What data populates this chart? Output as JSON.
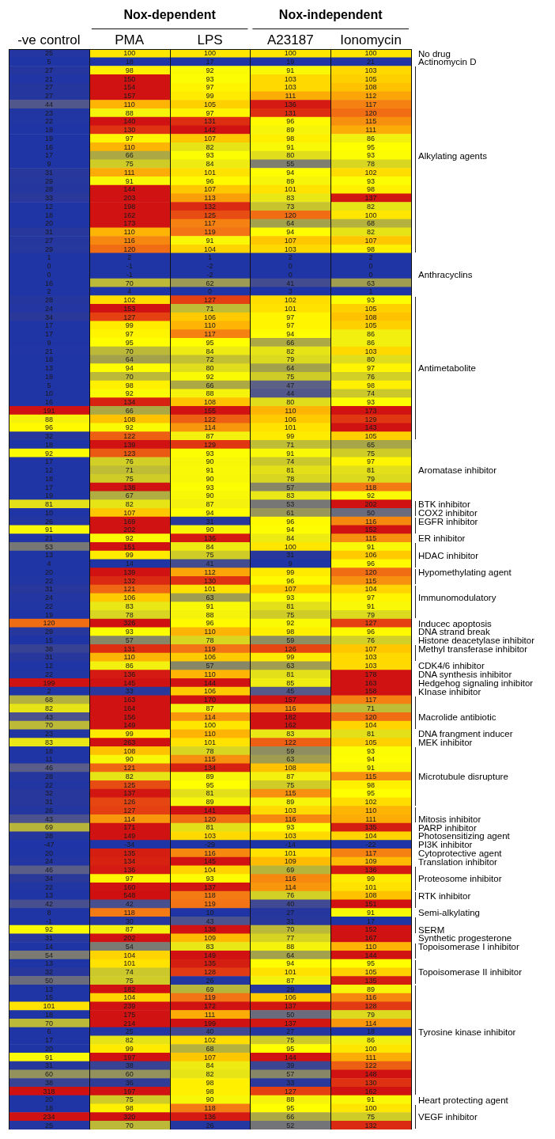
{
  "chart_data": {
    "type": "heatmap",
    "data_labels": true,
    "annotations": [
      "Nox-dependent",
      "Nox-independent"
    ],
    "categories": [
      "-ve control",
      "PMA",
      "LPS",
      "A23187",
      "Ionomycin"
    ],
    "y_categories": [
      null,
      null,
      null,
      null,
      null,
      null,
      null,
      null,
      null,
      null,
      null,
      null,
      null,
      null,
      null,
      null,
      null,
      null,
      null,
      null,
      null,
      null,
      null,
      null,
      null,
      null,
      null,
      null,
      null,
      null,
      null,
      null,
      null,
      null,
      null,
      null,
      null,
      null,
      null,
      null,
      null,
      null,
      null,
      null,
      null,
      null,
      null,
      null,
      null,
      null,
      null,
      null,
      null,
      null,
      null,
      null,
      null,
      null,
      null,
      null,
      null,
      null,
      null,
      null,
      null,
      null,
      null,
      null,
      null,
      null,
      null,
      null,
      null,
      null,
      null,
      null,
      null,
      null,
      null,
      null,
      null,
      null,
      null,
      null,
      null,
      null,
      null,
      null,
      null,
      null,
      null,
      null,
      null,
      null,
      null,
      null,
      null,
      null,
      null,
      null,
      null,
      null,
      null,
      null,
      null,
      null,
      null,
      null,
      null,
      null,
      null,
      null,
      null,
      null,
      null,
      null,
      null,
      null,
      null,
      null,
      null,
      null,
      null,
      null,
      null,
      null,
      null
    ],
    "y2_categories": [
      "No drug",
      "Actinomycin D",
      null,
      null,
      null,
      null,
      null,
      null,
      null,
      null,
      null,
      null,
      "Alkylating agents",
      null,
      null,
      null,
      null,
      null,
      null,
      null,
      null,
      null,
      null,
      null,
      null,
      null,
      "Anthracyclins",
      null,
      null,
      null,
      null,
      null,
      null,
      null,
      null,
      null,
      null,
      "Antimetabolite",
      null,
      null,
      null,
      null,
      null,
      null,
      null,
      null,
      null,
      null,
      null,
      "Aromatase inhibitor",
      null,
      null,
      null,
      "BTK inhibitor",
      "COX2 inhibitor",
      "EGFR inhibitor",
      null,
      "ER inhibitor",
      null,
      "HDAC inhibitor",
      null,
      "Hypomethylating agent",
      null,
      null,
      "Immunomodulatory",
      null,
      null,
      "Inducec apoptosis",
      "DNA strand break",
      "Histone deacetylase inhibitor",
      "Methyl transferase inhibitor",
      null,
      "CDK4/6 inhibitor",
      "DNA synthesis inhibitor",
      "Hedgehog signaling inhibitor",
      "KInase inhibitor",
      null,
      null,
      "Macrolide antibiotic",
      null,
      "DNA frangment inducer",
      "MEK inhibitor",
      null,
      null,
      null,
      "Microtubule disrupture",
      null,
      null,
      null,
      null,
      "Mitosis inhibitor",
      "PARP inhibitor",
      "Photosensitizing agent",
      "PI3K inhibitor",
      "Cytoprotective agent",
      "Translation inhibitor",
      null,
      "Proteosome inhibitor",
      null,
      "RTK inhibitor",
      null,
      "Semi-alkylating",
      null,
      "SERM",
      "Synthetic progesterone",
      "Topoisomerase I inhibitor",
      null,
      null,
      "Topoisomerase II inhibitor",
      null,
      null,
      null,
      null,
      null,
      null,
      "Tyrosine kinase inhibitor",
      null,
      null,
      null,
      null,
      null,
      null,
      null,
      "Heart protecting agent",
      null,
      "VEGF inhibitor",
      null
    ],
    "cells": [
      [
        25,
        100,
        100,
        100,
        100
      ],
      [
        5,
        18,
        17,
        19,
        21
      ],
      [
        27,
        98,
        92,
        91,
        103
      ],
      [
        21,
        150,
        93,
        103,
        105
      ],
      [
        27,
        154,
        97,
        103,
        108
      ],
      [
        27,
        157,
        99,
        111,
        112
      ],
      [
        44,
        110,
        105,
        136,
        117
      ],
      [
        23,
        88,
        97,
        131,
        120
      ],
      [
        22,
        140,
        131,
        96,
        115
      ],
      [
        18,
        130,
        142,
        89,
        111
      ],
      [
        19,
        97,
        107,
        98,
        86
      ],
      [
        16,
        110,
        82,
        91,
        95
      ],
      [
        17,
        66,
        93,
        80,
        93
      ],
      [
        9,
        75,
        84,
        55,
        78
      ],
      [
        31,
        111,
        101,
        94,
        102
      ],
      [
        29,
        91,
        96,
        89,
        93
      ],
      [
        28,
        144,
        107,
        101,
        98
      ],
      [
        33,
        203,
        113,
        83,
        137
      ],
      [
        12,
        198,
        132,
        73,
        82
      ],
      [
        18,
        162,
        125,
        120,
        100
      ],
      [
        20,
        173,
        117,
        64,
        68
      ],
      [
        31,
        110,
        119,
        94,
        82
      ],
      [
        27,
        116,
        91,
        107,
        107
      ],
      [
        29,
        120,
        104,
        103,
        98
      ],
      [
        1,
        2,
        1,
        2,
        2
      ],
      [
        0,
        -1,
        -2,
        0,
        0
      ],
      [
        0,
        -1,
        -2,
        0,
        0
      ],
      [
        16,
        70,
        62,
        41,
        63
      ],
      [
        2,
        4,
        0,
        3,
        1
      ],
      [
        28,
        102,
        127,
        102,
        93
      ],
      [
        24,
        153,
        71,
        101,
        105
      ],
      [
        34,
        127,
        106,
        97,
        108
      ],
      [
        17,
        99,
        110,
        97,
        105
      ],
      [
        17,
        97,
        117,
        94,
        86
      ],
      [
        9,
        95,
        95,
        66,
        86
      ],
      [
        21,
        70,
        84,
        82,
        103
      ],
      [
        18,
        64,
        72,
        79,
        80
      ],
      [
        13,
        94,
        80,
        64,
        97
      ],
      [
        18,
        70,
        92,
        75,
        76
      ],
      [
        5,
        98,
        66,
        47,
        98
      ],
      [
        10,
        92,
        88,
        44,
        74
      ],
      [
        16,
        134,
        108,
        80,
        93
      ],
      [
        191,
        66,
        155,
        110,
        173
      ],
      [
        88,
        108,
        122,
        106,
        129
      ],
      [
        96,
        92,
        114,
        101,
        143
      ],
      [
        32,
        122,
        87,
        99,
        105
      ],
      [
        18,
        139,
        129,
        71,
        65
      ],
      [
        92,
        123,
        93,
        91,
        75
      ],
      [
        17,
        76,
        90,
        74,
        97
      ],
      [
        12,
        71,
        91,
        81,
        81
      ],
      [
        18,
        75,
        90,
        78,
        79
      ],
      [
        17,
        138,
        93,
        57,
        118
      ],
      [
        19,
        67,
        90,
        83,
        92
      ],
      [
        81,
        82,
        87,
        53,
        202
      ],
      [
        10,
        107,
        94,
        61,
        50
      ],
      [
        26,
        169,
        31,
        96,
        116
      ],
      [
        91,
        202,
        90,
        94,
        152
      ],
      [
        21,
        92,
        136,
        84,
        115
      ],
      [
        53,
        151,
        84,
        100,
        91
      ],
      [
        13,
        99,
        75,
        31,
        106
      ],
      [
        4,
        14,
        41,
        9,
        96
      ],
      [
        20,
        139,
        112,
        99,
        120
      ],
      [
        22,
        132,
        130,
        96,
        115
      ],
      [
        31,
        121,
        101,
        107,
        104
      ],
      [
        24,
        106,
        63,
        93,
        97
      ],
      [
        22,
        83,
        91,
        81,
        91
      ],
      [
        19,
        78,
        88,
        75,
        79
      ],
      [
        120,
        326,
        96,
        92,
        127
      ],
      [
        29,
        93,
        110,
        98,
        96
      ],
      [
        15,
        57,
        78,
        59,
        76
      ],
      [
        38,
        131,
        119,
        126,
        107
      ],
      [
        31,
        110,
        106,
        99,
        103
      ],
      [
        12,
        86,
        57,
        63,
        103
      ],
      [
        22,
        136,
        110,
        81,
        178
      ],
      [
        199,
        145,
        144,
        85,
        163
      ],
      [
        2,
        33,
        106,
        45,
        158
      ],
      [
        68,
        163,
        170,
        157,
        117
      ],
      [
        82,
        164,
        87,
        116,
        71
      ],
      [
        43,
        156,
        114,
        182,
        120
      ],
      [
        70,
        149,
        100,
        162,
        104
      ],
      [
        23,
        99,
        110,
        83,
        81
      ],
      [
        83,
        263,
        101,
        122,
        105
      ],
      [
        18,
        108,
        78,
        59,
        93
      ],
      [
        11,
        90,
        115,
        63,
        94
      ],
      [
        46,
        121,
        134,
        108,
        91
      ],
      [
        28,
        82,
        89,
        87,
        115
      ],
      [
        22,
        125,
        95,
        75,
        98
      ],
      [
        32,
        137,
        81,
        115,
        95
      ],
      [
        31,
        126,
        89,
        89,
        102
      ],
      [
        26,
        127,
        141,
        103,
        110
      ],
      [
        43,
        114,
        120,
        116,
        111
      ],
      [
        69,
        171,
        81,
        93,
        135
      ],
      [
        28,
        149,
        103,
        103,
        104
      ],
      [
        -47,
        -34,
        -29,
        -14,
        -22
      ],
      [
        20,
        135,
        116,
        101,
        117
      ],
      [
        24,
        134,
        145,
        109,
        109
      ],
      [
        46,
        136,
        104,
        69,
        136
      ],
      [
        34,
        97,
        93,
        116,
        99
      ],
      [
        22,
        160,
        137,
        114,
        101
      ],
      [
        13,
        548,
        118,
        76,
        108
      ],
      [
        42,
        42,
        119,
        40,
        151
      ],
      [
        8,
        118,
        10,
        27,
        91
      ],
      [
        -1,
        30,
        43,
        31,
        17
      ],
      [
        92,
        87,
        138,
        70,
        152
      ],
      [
        31,
        202,
        109,
        77,
        167
      ],
      [
        14,
        54,
        83,
        88,
        110
      ],
      [
        54,
        104,
        149,
        64,
        144
      ],
      [
        13,
        101,
        135,
        94,
        95
      ],
      [
        32,
        74,
        128,
        101,
        105
      ],
      [
        50,
        75,
        26,
        87,
        135
      ],
      [
        13,
        182,
        69,
        29,
        89
      ],
      [
        15,
        104,
        119,
        106,
        116
      ],
      [
        101,
        239,
        172,
        137,
        128
      ],
      [
        18,
        175,
        111,
        50,
        79
      ],
      [
        70,
        214,
        199,
        137,
        114
      ],
      [
        6,
        25,
        40,
        27,
        18
      ],
      [
        17,
        82,
        102,
        75,
        86
      ],
      [
        20,
        99,
        68,
        95,
        100
      ],
      [
        91,
        197,
        107,
        144,
        111
      ],
      [
        31,
        38,
        84,
        39,
        122
      ],
      [
        60,
        60,
        82,
        57,
        148
      ],
      [
        38,
        36,
        98,
        33,
        130
      ],
      [
        318,
        197,
        98,
        127,
        162
      ],
      [
        20,
        75,
        90,
        88,
        91
      ],
      [
        18,
        98,
        118,
        95,
        100
      ],
      [
        234,
        320,
        136,
        66,
        75
      ],
      [
        25,
        70,
        26,
        52,
        132
      ]
    ]
  }
}
